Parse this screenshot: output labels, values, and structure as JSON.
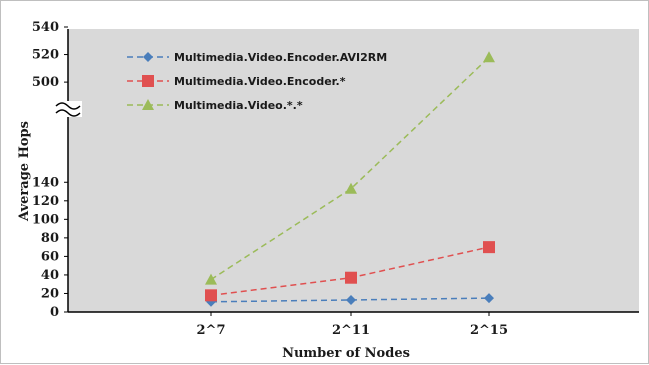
{
  "chart_data": {
    "type": "line",
    "xlabel": "Number of Nodes",
    "ylabel": "Average Hops",
    "categories": [
      "2^7",
      "2^11",
      "2^15"
    ],
    "y_ticks_lower": [
      "0",
      "20",
      "40",
      "60",
      "80",
      "100",
      "120",
      "140"
    ],
    "y_ticks_upper": [
      "500",
      "520",
      "540"
    ],
    "axis_break": true,
    "ylim_lower": [
      0,
      150
    ],
    "ylim_upper": [
      495,
      540
    ],
    "grid": false,
    "legend_position": "top-left",
    "plot_background": "#d9d9d9",
    "series": [
      {
        "name": "Multimedia.Video.Encoder.AVI2RM",
        "values": [
          11,
          13,
          15
        ],
        "color": "#4a7ebb",
        "marker": "diamond"
      },
      {
        "name": "Multimedia.Video.Encoder.*",
        "values": [
          18,
          37,
          70
        ],
        "color": "#e05050",
        "marker": "square"
      },
      {
        "name": "Multimedia.Video.*.*",
        "values": [
          35,
          133,
          518
        ],
        "color": "#9bbb59",
        "marker": "triangle"
      }
    ]
  }
}
